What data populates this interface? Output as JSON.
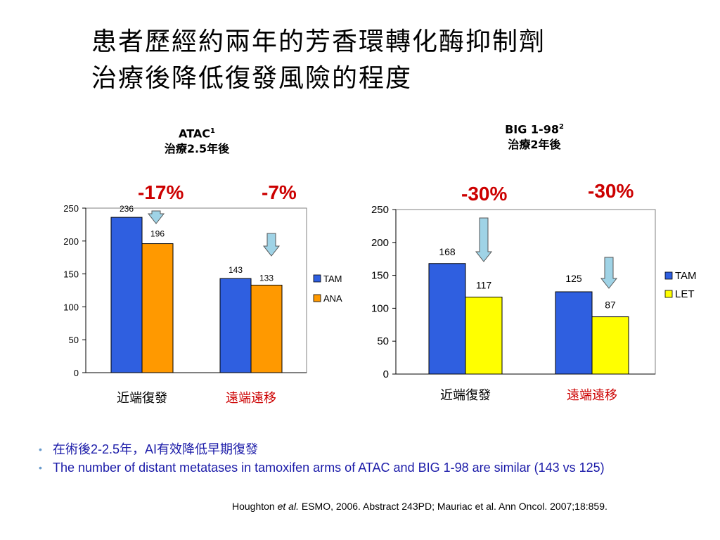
{
  "title_line1": "患者歷經約兩年的芳香環轉化酶抑制劑",
  "title_line2": "治療後降低復發風險的程度",
  "charts_meta": [
    {
      "name": "ATAC",
      "sup": "1",
      "sub": "治療2.5年後",
      "changes": [
        "-17%",
        "-7%"
      ]
    },
    {
      "name": "BIG 1-98",
      "sup": "2",
      "sub": "治療2年後",
      "changes": [
        "-30%",
        "-30%"
      ]
    }
  ],
  "chart_data": [
    {
      "type": "bar",
      "title": "ATAC",
      "categories": [
        "近端復發",
        "遠端遠移"
      ],
      "category_colors": [
        "#000000",
        "#cc0000"
      ],
      "series": [
        {
          "name": "TAM",
          "color": "#2f5fe0",
          "values": [
            236,
            143
          ]
        },
        {
          "name": "ANA",
          "color": "#ff9900",
          "values": [
            196,
            133
          ]
        }
      ],
      "ylim": [
        0,
        250
      ],
      "yticks": [
        0,
        50,
        100,
        150,
        200,
        250
      ],
      "legend": "right"
    },
    {
      "type": "bar",
      "title": "BIG 1-98",
      "categories": [
        "近端復發",
        "遠端遠移"
      ],
      "category_colors": [
        "#000000",
        "#cc0000"
      ],
      "series": [
        {
          "name": "TAM",
          "color": "#2f5fe0",
          "values": [
            168,
            125
          ]
        },
        {
          "name": "LET",
          "color": "#ffff00",
          "values": [
            117,
            87
          ]
        }
      ],
      "ylim": [
        0,
        250
      ],
      "yticks": [
        0,
        50,
        100,
        150,
        200,
        250
      ],
      "legend": "right"
    }
  ],
  "bullets": [
    "在術後2-2.5年，AI有效降低早期復發",
    "The number of distant metatases in tamoxifen arms of ATAC and BIG 1-98 are similar (143 vs 125)"
  ],
  "citation_pre": "Houghton ",
  "citation_etal": "et al.",
  "citation_post": " ESMO, 2006. Abstract 243PD; Mauriac et al. Ann Oncol. 2007;18:859."
}
